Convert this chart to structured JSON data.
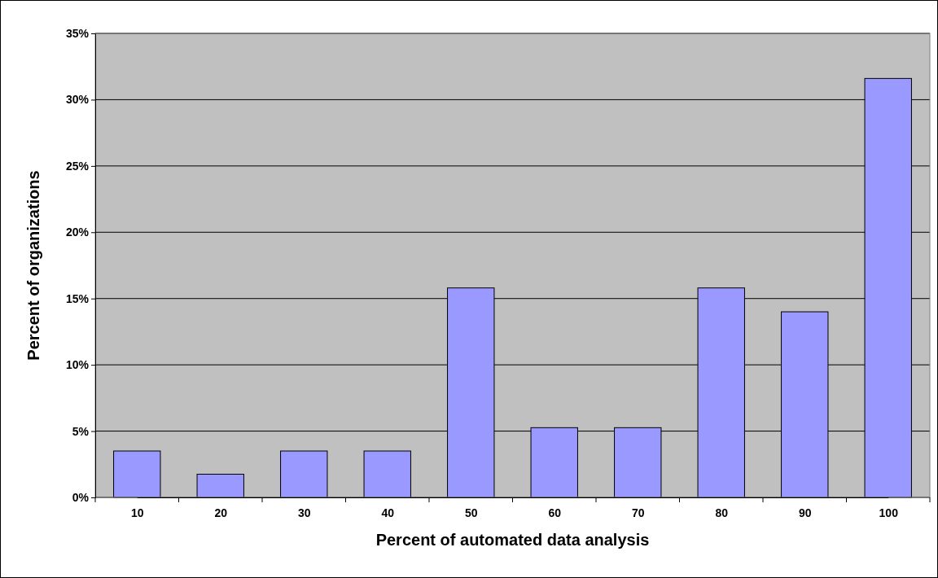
{
  "chart_data": {
    "type": "bar",
    "xlabel": "Percent of automated data analysis",
    "ylabel": "Percent of organizations",
    "categories": [
      "10",
      "20",
      "30",
      "40",
      "50",
      "60",
      "70",
      "80",
      "90",
      "100"
    ],
    "values": [
      3.5,
      1.75,
      3.5,
      3.5,
      15.8,
      5.26,
      5.26,
      15.8,
      14.0,
      31.6
    ],
    "color": "#9999ff",
    "ylim": [
      0,
      35
    ],
    "yticks": [
      {
        "value": 0,
        "label": "0%"
      },
      {
        "value": 5,
        "label": "5%"
      },
      {
        "value": 10,
        "label": "10%"
      },
      {
        "value": 15,
        "label": "15%"
      },
      {
        "value": 20,
        "label": "20%"
      },
      {
        "value": 25,
        "label": "25%"
      },
      {
        "value": 30,
        "label": "30%"
      },
      {
        "value": 35,
        "label": "35%"
      }
    ],
    "grid": "y"
  }
}
